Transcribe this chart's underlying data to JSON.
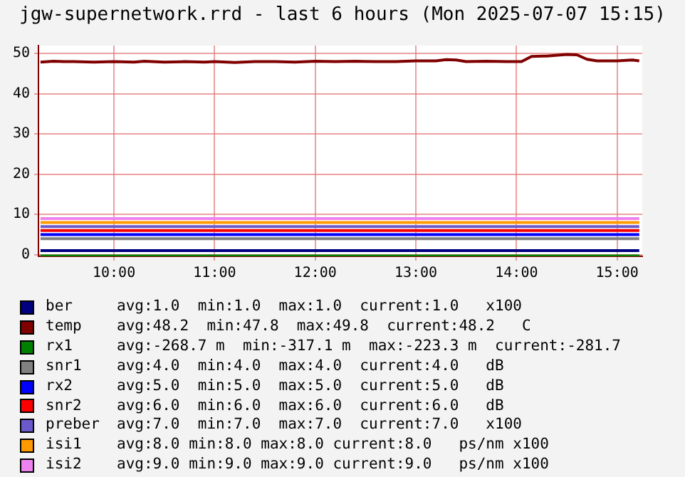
{
  "chart_data": {
    "type": "line",
    "title": "jgw-supernetwork.rrd - last 6 hours (Mon 2025-07-07 15:15)",
    "xlim": [
      9.25,
      15.25
    ],
    "xticks": [
      {
        "value": 10,
        "label": "10:00"
      },
      {
        "value": 11,
        "label": "11:00"
      },
      {
        "value": 12,
        "label": "12:00"
      },
      {
        "value": 13,
        "label": "13:00"
      },
      {
        "value": 14,
        "label": "14:00"
      },
      {
        "value": 15,
        "label": "15:00"
      }
    ],
    "ylim": [
      -0.4,
      52
    ],
    "yticks": [
      0,
      10,
      20,
      30,
      40,
      50
    ],
    "grid": true,
    "legend": "bottom",
    "marker": "none",
    "line_style": "solid",
    "series": [
      {
        "name": "ber",
        "color": "#000080",
        "x": [
          9.27,
          15.22
        ],
        "values": [
          1.0,
          1.0
        ]
      },
      {
        "name": "temp",
        "color": "#800000",
        "x": [
          9.27,
          9.4,
          9.5,
          9.6,
          9.8,
          10.0,
          10.2,
          10.3,
          10.5,
          10.7,
          10.9,
          11.0,
          11.2,
          11.4,
          11.6,
          11.8,
          12.0,
          12.2,
          12.4,
          12.6,
          12.8,
          13.0,
          13.2,
          13.3,
          13.4,
          13.5,
          13.7,
          13.9,
          14.05,
          14.15,
          14.3,
          14.5,
          14.6,
          14.7,
          14.8,
          15.0,
          15.15,
          15.22
        ],
        "values": [
          47.9,
          48.1,
          48.0,
          48.0,
          47.9,
          48.0,
          47.9,
          48.1,
          47.9,
          48.0,
          47.9,
          48.0,
          47.8,
          48.0,
          48.0,
          47.9,
          48.1,
          48.0,
          48.1,
          48.0,
          48.0,
          48.2,
          48.2,
          48.5,
          48.4,
          48.0,
          48.1,
          48.0,
          48.0,
          49.3,
          49.4,
          49.8,
          49.7,
          48.6,
          48.2,
          48.2,
          48.4,
          48.2
        ]
      },
      {
        "name": "rx1",
        "color": "#008000",
        "x": [
          9.27,
          15.22
        ],
        "values": [
          -0.3,
          -0.3
        ]
      },
      {
        "name": "snr1",
        "color": "#808080",
        "x": [
          9.27,
          15.22
        ],
        "values": [
          4.0,
          4.0
        ]
      },
      {
        "name": "rx2",
        "color": "#0000ff",
        "x": [
          9.27,
          15.22
        ],
        "values": [
          5.0,
          5.0
        ]
      },
      {
        "name": "snr2",
        "color": "#ff0000",
        "x": [
          9.27,
          15.22
        ],
        "values": [
          6.0,
          6.0
        ]
      },
      {
        "name": "preber",
        "color": "#6a5acd",
        "x": [
          9.27,
          15.22
        ],
        "values": [
          7.0,
          7.0
        ]
      },
      {
        "name": "isi1",
        "color": "#ff9900",
        "x": [
          9.27,
          15.22
        ],
        "values": [
          8.0,
          8.0
        ]
      },
      {
        "name": "isi2",
        "color": "#ee82ee",
        "x": [
          9.27,
          15.22
        ],
        "values": [
          9.0,
          9.0
        ]
      }
    ],
    "annotations": [
      "avg:1.0  min:1.0  max:1.0  current:1.0   x100",
      "avg:48.2  min:47.8  max:49.8  current:48.2   C",
      "avg:-268.7 m  min:-317.1 m  max:-223.3 m  current:-281.7",
      "avg:4.0  min:4.0  max:4.0  current:4.0   dB",
      "avg:5.0  min:5.0  max:5.0  current:5.0   dB",
      "avg:6.0  min:6.0  max:6.0  current:6.0   dB",
      "avg:7.0  min:7.0  max:7.0  current:7.0   x100",
      "avg:8.0 min:8.0 max:8.0 current:8.0   ps/nm x100",
      "avg:9.0 min:9.0 max:9.0 current:9.0   ps/nm x100"
    ]
  }
}
